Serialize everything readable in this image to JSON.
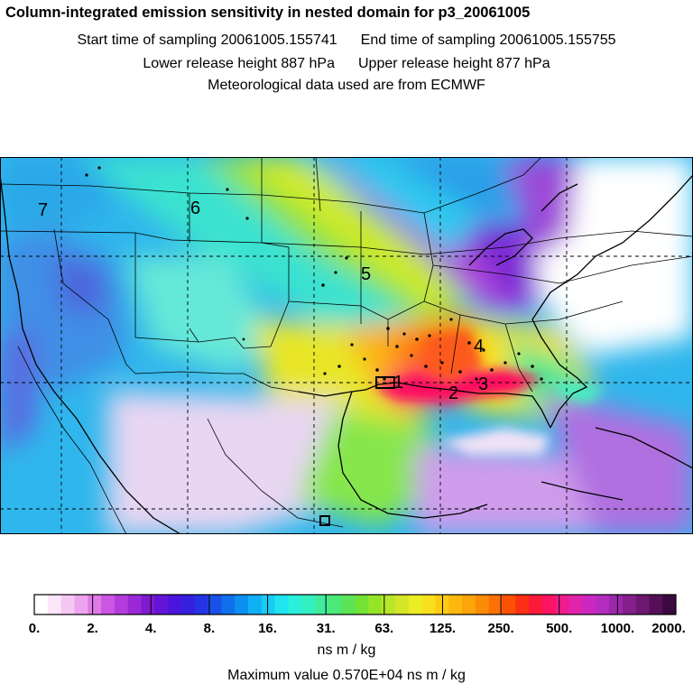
{
  "header": {
    "title": "Column-integrated emission sensitivity in nested domain for p3_20061005",
    "start_label": "Start time of sampling 20061005.155741",
    "end_label": "End time of sampling 20061005.155755",
    "lower_label": "Lower release height  887 hPa",
    "upper_label": "Upper release height  877 hPa",
    "met_label": "Meteorological data used are from ECMWF"
  },
  "map": {
    "cluster_labels": [
      "1",
      "2",
      "3",
      "4",
      "5",
      "6",
      "7"
    ]
  },
  "colorbar": {
    "tick_labels": [
      "0.",
      "2.",
      "4.",
      "8.",
      "16.",
      "31.",
      "63.",
      "125.",
      "250.",
      "500.",
      "1000.",
      "2000."
    ],
    "colors": [
      "#ffffff",
      "#fbe6fa",
      "#f5c8f3",
      "#eda4ee",
      "#e07ae6",
      "#cc55e2",
      "#b53cdc",
      "#9a28d6",
      "#7e1ad2",
      "#6414d6",
      "#4b14dc",
      "#3620e0",
      "#2434e4",
      "#1850e8",
      "#1070ec",
      "#0c90f0",
      "#10b0f4",
      "#18ccf4",
      "#20e4f0",
      "#2af0dc",
      "#34f0c0",
      "#40ec9c",
      "#4ce878",
      "#5ce456",
      "#74e234",
      "#96e428",
      "#b8e628",
      "#d4e628",
      "#ecec24",
      "#f8e01c",
      "#fccc14",
      "#fcb80e",
      "#fca40a",
      "#fc8c08",
      "#fc7006",
      "#fc5004",
      "#fc3014",
      "#fc1a3a",
      "#fa1462",
      "#f01c8c",
      "#e024ac",
      "#cc28c0",
      "#b42cc0",
      "#9c28ac",
      "#84208c",
      "#6c1870",
      "#540f58",
      "#3c0840"
    ]
  },
  "unit_label": "ns m / kg",
  "max_label": "Maximum value  0.570E+04 ns m / kg"
}
